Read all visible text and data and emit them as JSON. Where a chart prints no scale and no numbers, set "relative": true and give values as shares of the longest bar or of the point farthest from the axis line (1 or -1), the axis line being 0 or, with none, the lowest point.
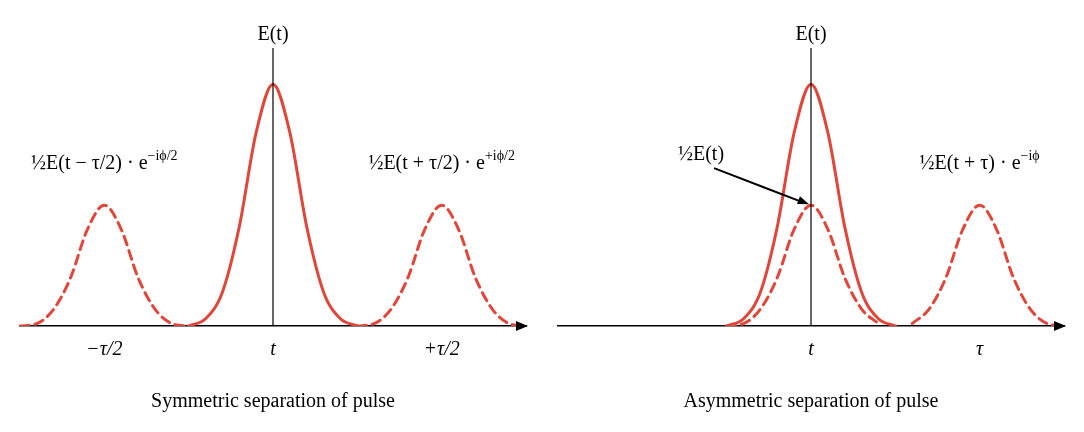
{
  "chart_data": [
    {
      "type": "line",
      "relative": true,
      "xlabel": "Symmetric separation of pulse",
      "ylabel": "E(t)",
      "marker": "none",
      "legend": false,
      "grid": false,
      "categories": [
        null,
        null,
        null,
        null,
        null,
        "−τ/2",
        null,
        null,
        null,
        null,
        null,
        null,
        null,
        null,
        null,
        "t",
        null,
        null,
        null,
        null,
        null,
        null,
        null,
        null,
        null,
        "+τ/2",
        null,
        null,
        null,
        null,
        null
      ],
      "series": [
        {
          "color": "#e0473a",
          "line_style": "dashed",
          "values": [
            0,
            0.01,
            0.07,
            0.2,
            0.4,
            0.5,
            0.4,
            0.2,
            0.07,
            0.01,
            0,
            null,
            null,
            null,
            null,
            null,
            null,
            null,
            null,
            null,
            null,
            null,
            null,
            null,
            null,
            null,
            null,
            null,
            null,
            null,
            null
          ]
        },
        {
          "color": "#e0473a",
          "line_style": "solid",
          "values": [
            null,
            null,
            null,
            null,
            null,
            null,
            null,
            null,
            null,
            null,
            0,
            0.03,
            0.14,
            0.41,
            0.8,
            1,
            0.8,
            0.41,
            0.14,
            0.03,
            0,
            null,
            null,
            null,
            null,
            null,
            null,
            null,
            null,
            null,
            null
          ]
        },
        {
          "color": "#e0473a",
          "line_style": "dashed",
          "values": [
            null,
            null,
            null,
            null,
            null,
            null,
            null,
            null,
            null,
            null,
            null,
            null,
            null,
            null,
            null,
            null,
            null,
            null,
            null,
            null,
            0,
            0.01,
            0.07,
            0.2,
            0.4,
            0.5,
            0.4,
            0.2,
            0.07,
            0.01,
            0
          ]
        }
      ],
      "ref_lines": [
        {
          "axis": "x",
          "value": "t",
          "color": "#000000"
        }
      ],
      "annotations": [
        {
          "text": "½E(t − τ/2) · e$^{−iϕ/2}$",
          "x": "−τ/2",
          "y": 0.5
        },
        {
          "text": "½E(t + τ/2) · e$^{+iϕ/2}$",
          "x": "+τ/2",
          "y": 0.5
        }
      ]
    },
    {
      "type": "line",
      "relative": true,
      "xlabel": "Asymmetric separation of pulse",
      "ylabel": "E(t)",
      "marker": "none",
      "legend": false,
      "grid": false,
      "categories": [
        null,
        null,
        null,
        null,
        null,
        null,
        null,
        null,
        null,
        null,
        null,
        null,
        null,
        null,
        null,
        "t",
        null,
        null,
        null,
        null,
        null,
        null,
        null,
        null,
        null,
        "τ",
        null,
        null,
        null,
        null,
        null
      ],
      "series": [
        {
          "color": "#e0473a",
          "line_style": "solid",
          "values": [
            null,
            null,
            null,
            null,
            null,
            null,
            null,
            null,
            null,
            null,
            0,
            0.03,
            0.14,
            0.41,
            0.8,
            1,
            0.8,
            0.41,
            0.14,
            0.03,
            0,
            null,
            null,
            null,
            null,
            null,
            null,
            null,
            null,
            null,
            null
          ]
        },
        {
          "color": "#e0473a",
          "line_style": "dashed",
          "values": [
            null,
            null,
            null,
            null,
            null,
            null,
            null,
            null,
            null,
            null,
            0,
            0.01,
            0.07,
            0.2,
            0.4,
            0.5,
            0.4,
            0.2,
            0.07,
            0.01,
            null,
            null,
            null,
            null,
            null,
            null,
            null,
            null,
            null,
            null,
            null
          ]
        },
        {
          "color": "#e0473a",
          "line_style": "dashed",
          "values": [
            null,
            null,
            null,
            null,
            null,
            null,
            null,
            null,
            null,
            null,
            null,
            null,
            null,
            null,
            null,
            null,
            null,
            null,
            null,
            null,
            null,
            0.01,
            0.07,
            0.2,
            0.4,
            0.5,
            0.4,
            0.2,
            0.07,
            0.01,
            0
          ]
        }
      ],
      "ref_lines": [
        {
          "axis": "x",
          "value": "t",
          "color": "#000000"
        }
      ],
      "annotations": [
        {
          "text": "½E(t)",
          "x": "t",
          "y": 0.5
        },
        {
          "text": "½E(t + τ) · e$^{−iϕ}$",
          "x": "τ",
          "y": 0.5
        }
      ]
    }
  ]
}
